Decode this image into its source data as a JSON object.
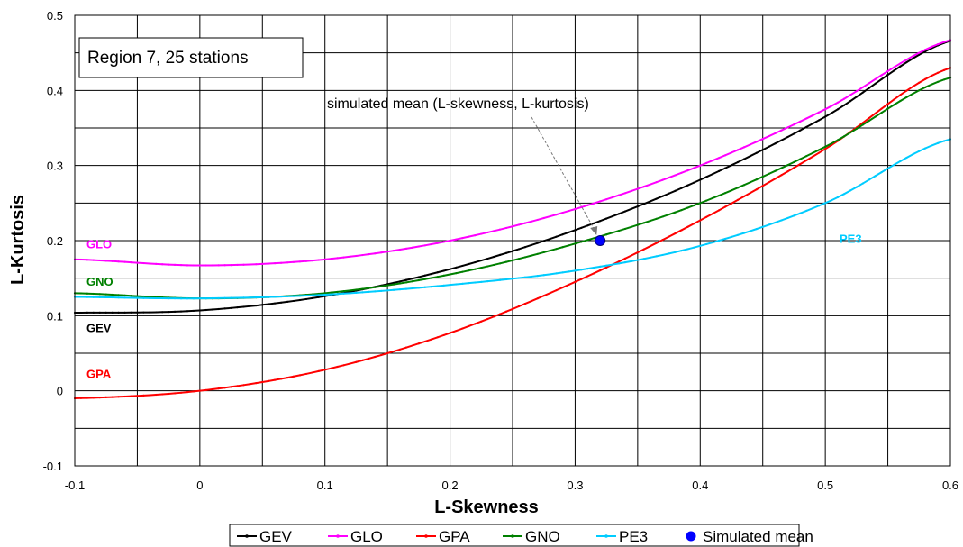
{
  "chart_data": {
    "type": "line",
    "xlabel": "L-Skewness",
    "ylabel": "L-Kurtosis",
    "xlim": [
      -0.1,
      0.6
    ],
    "ylim": [
      -0.1,
      0.5
    ],
    "x_ticks": [
      "-0.1",
      "0",
      "0.1",
      "0.2",
      "0.3",
      "0.4",
      "0.5",
      "0.6"
    ],
    "y_ticks": [
      "-0.1",
      "0",
      "0.1",
      "0.2",
      "0.3",
      "0.4",
      "0.5"
    ],
    "grid": true,
    "legend_position": "bottom",
    "annotation_box": "Region 7, 25 stations",
    "annotation_arrow_text": "simulated mean (L-skewness, L-kurtosis)",
    "x": [
      -0.1,
      0.0,
      0.1,
      0.2,
      0.3,
      0.4,
      0.5,
      0.6
    ],
    "series": [
      {
        "name": "GEV",
        "color": "#000000",
        "label": "GEV",
        "values": [
          0.104,
          0.107,
          0.126,
          0.162,
          0.214,
          0.281,
          0.365,
          0.466
        ]
      },
      {
        "name": "GLO",
        "color": "#ff00ff",
        "label": "GLO",
        "values": [
          0.175,
          0.167,
          0.175,
          0.2,
          0.242,
          0.3,
          0.375,
          0.467
        ]
      },
      {
        "name": "GPA",
        "color": "#ff0000",
        "label": "GPA",
        "values": [
          -0.01,
          0.0,
          0.028,
          0.077,
          0.145,
          0.227,
          0.322,
          0.43
        ]
      },
      {
        "name": "GNO",
        "color": "#008000",
        "label": "GNO",
        "values": [
          0.13,
          0.123,
          0.13,
          0.155,
          0.196,
          0.25,
          0.325,
          0.417
        ]
      },
      {
        "name": "PE3",
        "color": "#00ccff",
        "label": "PE3",
        "values": [
          0.125,
          0.123,
          0.128,
          0.141,
          0.16,
          0.193,
          0.25,
          0.335
        ]
      }
    ],
    "points": [
      {
        "name": "Simulated mean",
        "color": "#0000ff",
        "x": 0.32,
        "y": 0.2
      }
    ]
  }
}
